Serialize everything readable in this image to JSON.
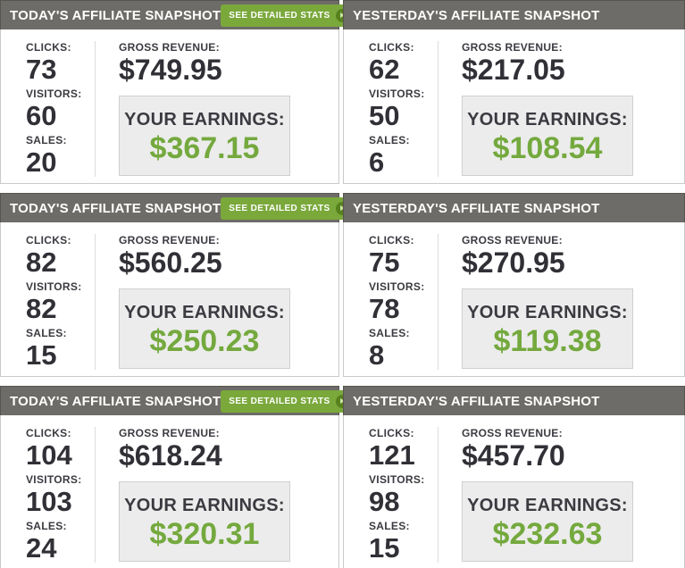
{
  "see_detailed_stats_label": "SEE DETAILED STATS",
  "labels": {
    "clicks": "CLICKS:",
    "visitors": "VISITORS:",
    "sales": "SALES:",
    "gross_revenue": "GROSS REVENUE:",
    "your_earnings": "YOUR EARNINGS:"
  },
  "colors": {
    "header_bg": "#6E6C68",
    "button_green": "#7AA83B",
    "earnings_green": "#74A93E",
    "dark_text": "#313036",
    "earnings_box_bg": "#ECECEC"
  },
  "panels": [
    {
      "title": "TODAY'S AFFILIATE SNAPSHOT",
      "has_button": true,
      "clicks": "73",
      "visitors": "60",
      "sales": "20",
      "gross_revenue": "$749.95",
      "earnings": "$367.15"
    },
    {
      "title": "YESTERDAY'S AFFILIATE SNAPSHOT",
      "has_button": false,
      "clicks": "62",
      "visitors": "50",
      "sales": "6",
      "gross_revenue": "$217.05",
      "earnings": "$108.54"
    },
    {
      "title": "TODAY'S AFFILIATE SNAPSHOT",
      "has_button": true,
      "clicks": "82",
      "visitors": "82",
      "sales": "15",
      "gross_revenue": "$560.25",
      "earnings": "$250.23"
    },
    {
      "title": "YESTERDAY'S AFFILIATE SNAPSHOT",
      "has_button": false,
      "clicks": "75",
      "visitors": "78",
      "sales": "8",
      "gross_revenue": "$270.95",
      "earnings": "$119.38"
    },
    {
      "title": "TODAY'S AFFILIATE SNAPSHOT",
      "has_button": true,
      "clicks": "104",
      "visitors": "103",
      "sales": "24",
      "gross_revenue": "$618.24",
      "earnings": "$320.31"
    },
    {
      "title": "YESTERDAY'S AFFILIATE SNAPSHOT",
      "has_button": false,
      "clicks": "121",
      "visitors": "98",
      "sales": "15",
      "gross_revenue": "$457.70",
      "earnings": "$232.63"
    }
  ]
}
